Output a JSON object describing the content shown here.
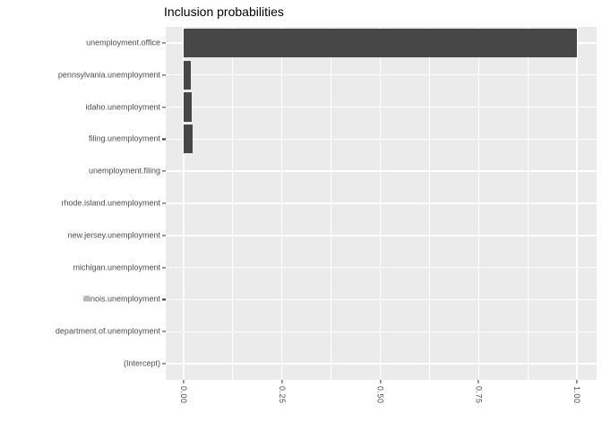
{
  "page": {
    "background": "#FFFFFF"
  },
  "chart_data": {
    "type": "bar",
    "orientation": "horizontal",
    "title": "Inclusion probabilities",
    "categories": [
      "unemployment.office",
      "pennsylvania.unemployment",
      "idaho.unemployment",
      "filing.unemployment",
      "unemployment.filing",
      "rhode.island.unemployment",
      "new.jersey.unemployment",
      "michigan.unemployment",
      "illinois.unemployment",
      "department.of.unemployment",
      "(Intercept)"
    ],
    "values": [
      1.0,
      0.018,
      0.02,
      0.022,
      0,
      0,
      0,
      0,
      0,
      0,
      0
    ],
    "xlabel": "",
    "ylabel": "",
    "xlim": [
      0,
      1
    ],
    "x_ticks": [
      {
        "value": 0.0,
        "label": "0.00"
      },
      {
        "value": 0.25,
        "label": "0.25"
      },
      {
        "value": 0.5,
        "label": "0.50"
      },
      {
        "value": 0.75,
        "label": "0.75"
      },
      {
        "value": 1.0,
        "label": "1.00"
      }
    ],
    "x_minor_gridlines": [
      0.125,
      0.375,
      0.625,
      0.875
    ],
    "x_tick_label_rotation_deg": 90,
    "grid": "white major and minor gridlines on grey panel",
    "legend_position": "none",
    "colors": {
      "bar": "#474747",
      "panel_background": "#EBEBEB",
      "gridline": "#FFFFFF",
      "axis_text": "#4D4D4D",
      "tick_mark": "#333333",
      "title_text": "#000000"
    }
  }
}
